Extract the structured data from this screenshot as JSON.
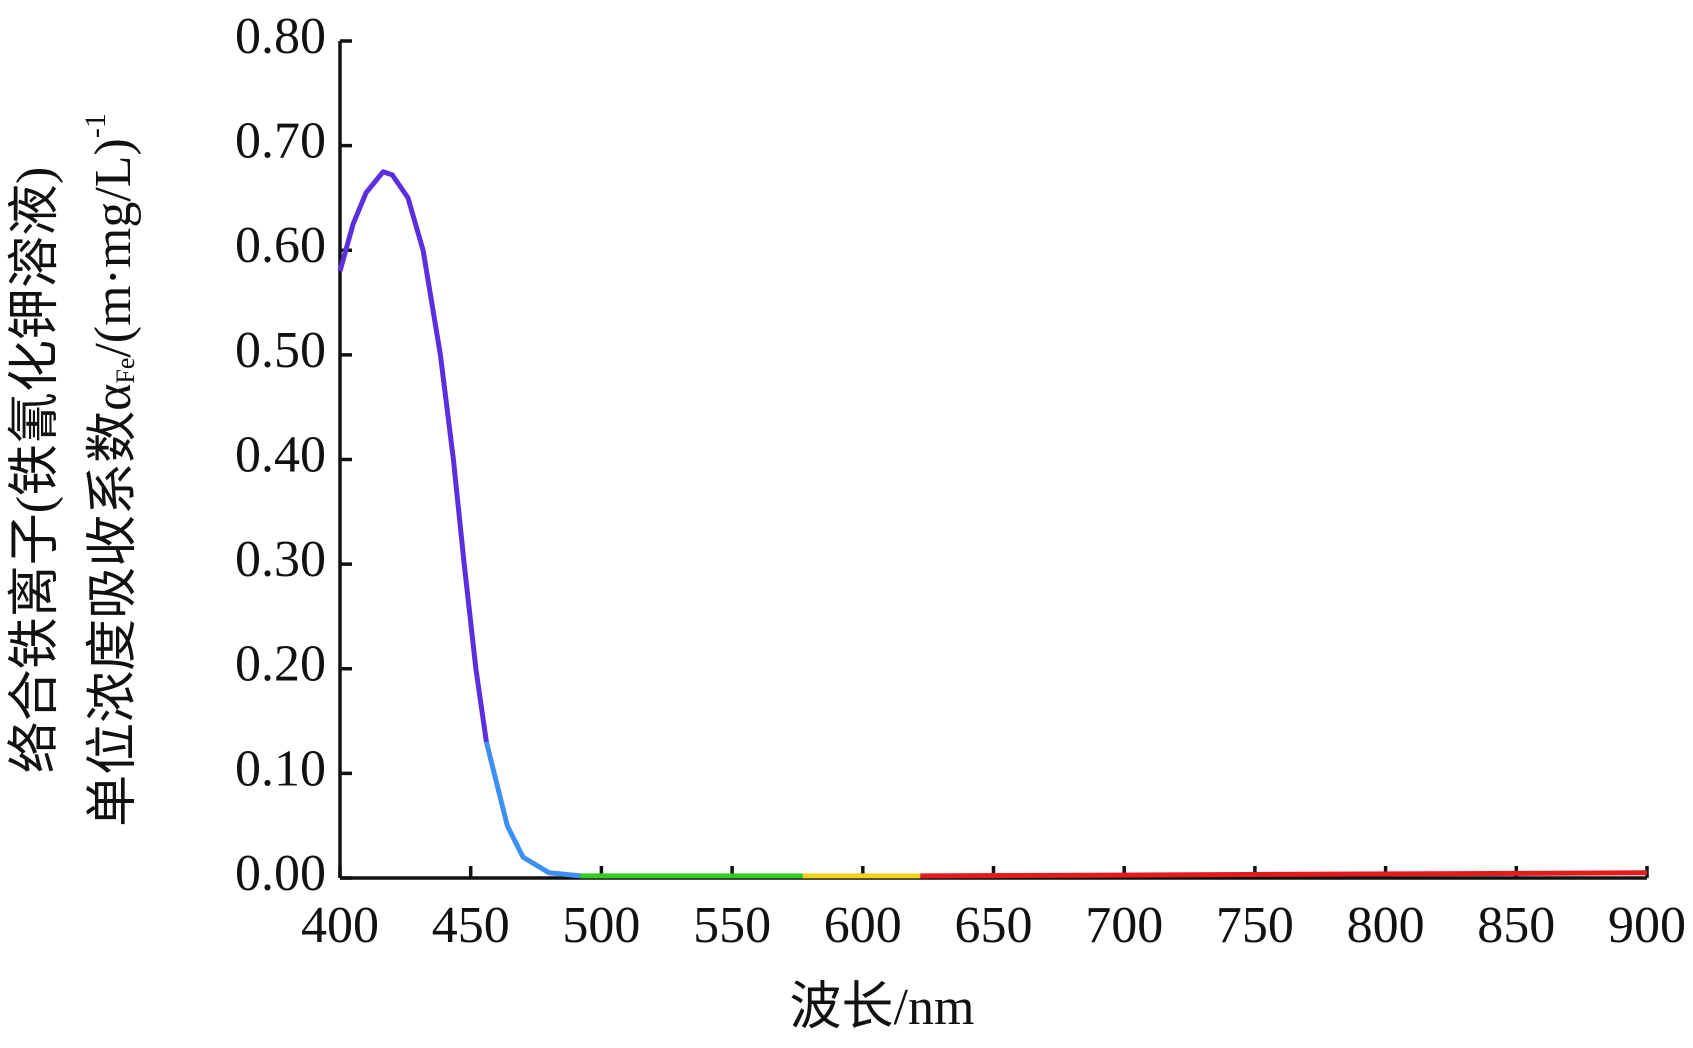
{
  "chart_data": {
    "type": "line",
    "x_label": "波长/nm",
    "y_label": {
      "line1": "络合铁离子(铁氰化钾溶液)",
      "line2": {
        "main": "单位浓度吸收系数α",
        "sub": "Fe",
        "rest": "/(m·mg/L)",
        "sup": "-1"
      }
    },
    "series": [
      {
        "color": "#5b2fe0",
        "x": [
          400,
          405,
          410,
          416.5,
          420,
          426,
          431.8,
          438.4,
          443.4,
          447.5,
          452,
          456
        ],
        "values": [
          0.58,
          0.625,
          0.655,
          0.675,
          0.672,
          0.65,
          0.6,
          0.5,
          0.4,
          0.3,
          0.2,
          0.13
        ]
      },
      {
        "color": "#3d8ff0",
        "x": [
          456,
          459,
          464,
          470,
          480,
          492
        ],
        "values": [
          0.13,
          0.1,
          0.05,
          0.02,
          0.005,
          0.002
        ]
      },
      {
        "color": "#33cc22",
        "x": [
          492,
          577
        ],
        "values": [
          0.002,
          0.002
        ]
      },
      {
        "color": "#f2d21a",
        "x": [
          577,
          622
        ],
        "values": [
          0.002,
          0.002
        ]
      },
      {
        "color": "#e41b1b",
        "x": [
          622,
          900
        ],
        "values": [
          0.002,
          0.005
        ]
      }
    ],
    "xlim": [
      400,
      900
    ],
    "xticks": [
      400,
      450,
      500,
      550,
      600,
      650,
      700,
      750,
      800,
      850,
      900
    ],
    "ylim": [
      0,
      0.8
    ],
    "yticks": [
      {
        "value": 0,
        "label": "0.00"
      },
      {
        "value": 0.1,
        "label": "0.10"
      },
      {
        "value": 0.2,
        "label": "0.20"
      },
      {
        "value": 0.3,
        "label": "0.30"
      },
      {
        "value": 0.4,
        "label": "0.40"
      },
      {
        "value": 0.5,
        "label": "0.50"
      },
      {
        "value": 0.6,
        "label": "0.60"
      },
      {
        "value": 0.7,
        "label": "0.70"
      },
      {
        "value": 0.8,
        "label": "0.80"
      }
    ],
    "grid": false
  }
}
